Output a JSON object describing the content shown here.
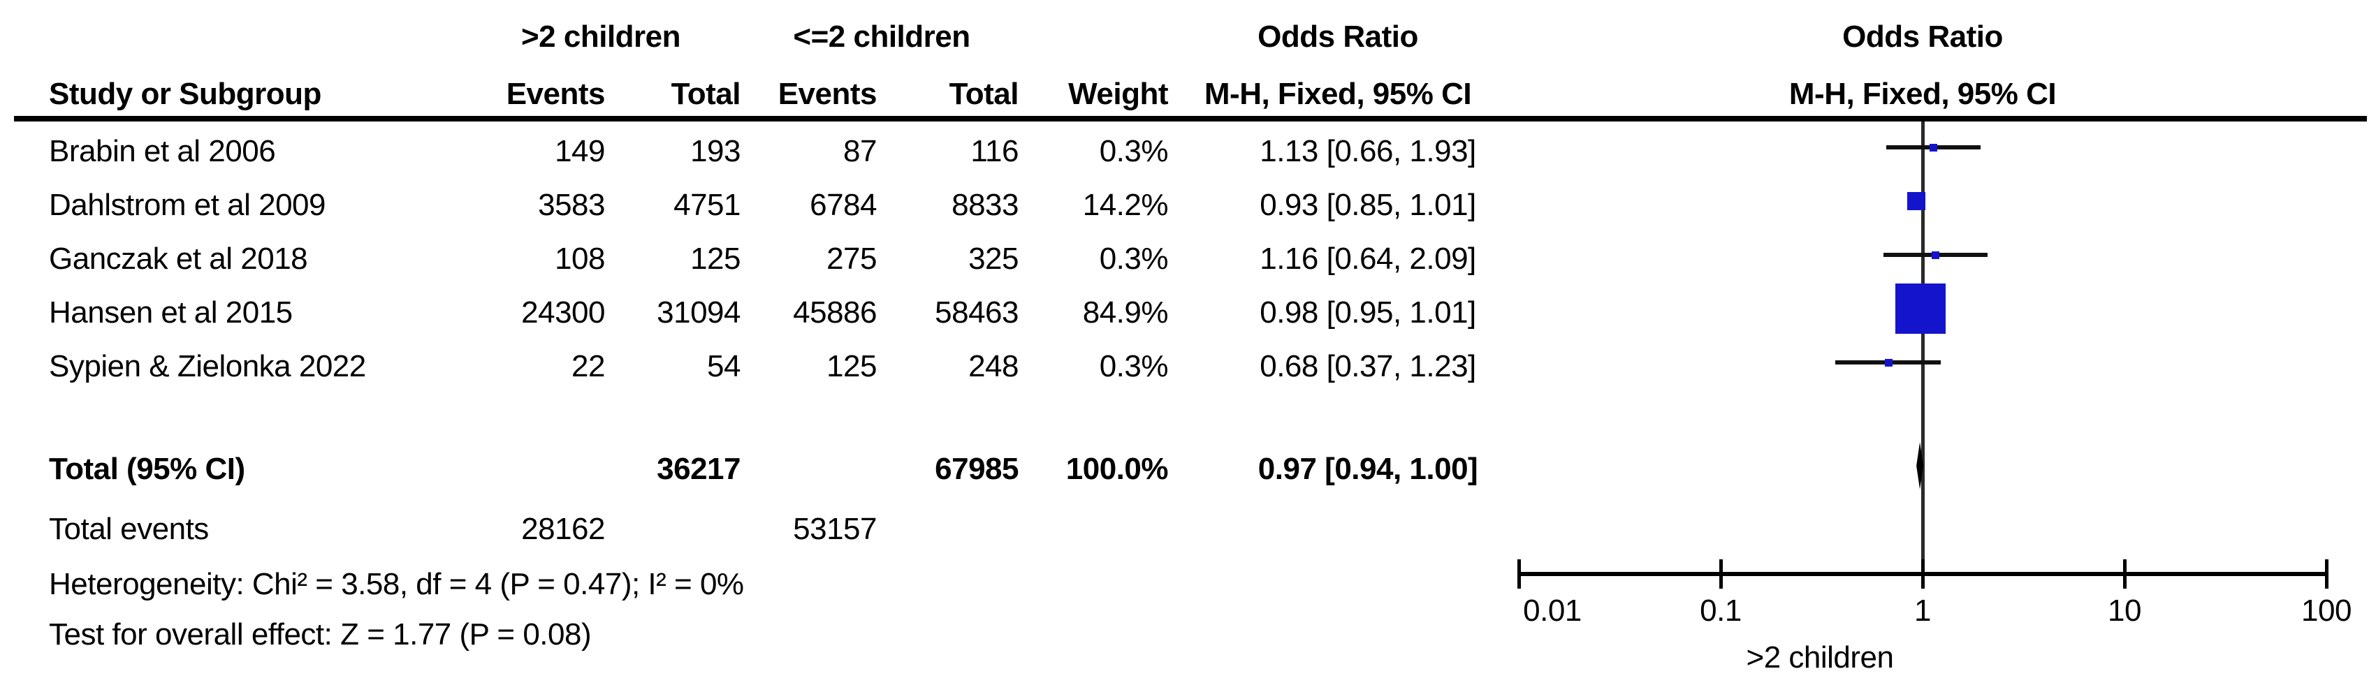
{
  "colors": {
    "marker_blue": "#1414CC",
    "line_black": "#000000",
    "background": "#ffffff"
  },
  "header": {
    "group1": ">2 children",
    "group2": "<=2 children",
    "study": "Study or Subgroup",
    "events": "Events",
    "total": "Total",
    "weight": "Weight",
    "or_title": "Odds Ratio",
    "or_subtitle": "M-H, Fixed, 95% CI",
    "plot_title": "Odds Ratio",
    "plot_subtitle": "M-H, Fixed, 95% CI"
  },
  "rows": [
    {
      "name": "Brabin et al 2006",
      "e1": "149",
      "t1": "193",
      "e2": "87",
      "t2": "116",
      "weight": "0.3%",
      "ci": "1.13 [0.66, 1.93]",
      "or": 1.13,
      "lo": 0.66,
      "hi": 1.93,
      "w": 0.3
    },
    {
      "name": "Dahlstrom et al 2009",
      "e1": "3583",
      "t1": "4751",
      "e2": "6784",
      "t2": "8833",
      "weight": "14.2%",
      "ci": "0.93 [0.85, 1.01]",
      "or": 0.93,
      "lo": 0.85,
      "hi": 1.01,
      "w": 14.2
    },
    {
      "name": "Ganczak et al 2018",
      "e1": "108",
      "t1": "125",
      "e2": "275",
      "t2": "325",
      "weight": "0.3%",
      "ci": "1.16 [0.64, 2.09]",
      "or": 1.16,
      "lo": 0.64,
      "hi": 2.09,
      "w": 0.3
    },
    {
      "name": "Hansen et al 2015",
      "e1": "24300",
      "t1": "31094",
      "e2": "45886",
      "t2": "58463",
      "weight": "84.9%",
      "ci": "0.98 [0.95, 1.01]",
      "or": 0.98,
      "lo": 0.95,
      "hi": 1.01,
      "w": 84.9
    },
    {
      "name": "Sypien & Zielonka 2022",
      "e1": "22",
      "t1": "54",
      "e2": "125",
      "t2": "248",
      "weight": "0.3%",
      "ci": "0.68 [0.37, 1.23]",
      "or": 0.68,
      "lo": 0.37,
      "hi": 1.23,
      "w": 0.3
    }
  ],
  "total_row": {
    "label": "Total (95% CI)",
    "t1": "36217",
    "t2": "67985",
    "weight": "100.0%",
    "ci": "0.97 [0.94, 1.00]",
    "or": 0.97,
    "lo": 0.94,
    "hi": 1.0
  },
  "total_events": {
    "label": "Total events",
    "e1": "28162",
    "e2": "53157"
  },
  "stats": {
    "heterogeneity": "Heterogeneity: Chi² = 3.58, df = 4 (P = 0.47); I² = 0%",
    "overall": "Test for overall effect: Z = 1.77 (P = 0.08)"
  },
  "axis": {
    "ticks": [
      "0.01",
      "0.1",
      "1",
      "10",
      "100"
    ],
    "values": [
      0.01,
      0.1,
      1,
      10,
      100
    ],
    "label": ">2 children"
  },
  "chart_data": {
    "type": "scatter",
    "subtype": "forest-plot-meta-analysis",
    "title": "Odds Ratio",
    "effect_measure": "M-H, Fixed, 95% CI",
    "x_scale": "log10",
    "x_ticks": [
      0.01,
      0.1,
      1,
      10,
      100
    ],
    "xlim": [
      0.01,
      100
    ],
    "x_axis_label": ">2 children",
    "reference_line": 1,
    "studies": [
      {
        "study": "Brabin et al 2006",
        "events_gt2children": 149,
        "total_gt2children": 193,
        "events_le2children": 87,
        "total_le2children": 116,
        "weight_pct": 0.3,
        "odds_ratio": 1.13,
        "ci_low": 0.66,
        "ci_high": 1.93
      },
      {
        "study": "Dahlstrom et al 2009",
        "events_gt2children": 3583,
        "total_gt2children": 4751,
        "events_le2children": 6784,
        "total_le2children": 8833,
        "weight_pct": 14.2,
        "odds_ratio": 0.93,
        "ci_low": 0.85,
        "ci_high": 1.01
      },
      {
        "study": "Ganczak et al 2018",
        "events_gt2children": 108,
        "total_gt2children": 125,
        "events_le2children": 275,
        "total_le2children": 325,
        "weight_pct": 0.3,
        "odds_ratio": 1.16,
        "ci_low": 0.64,
        "ci_high": 2.09
      },
      {
        "study": "Hansen et al 2015",
        "events_gt2children": 24300,
        "total_gt2children": 31094,
        "events_le2children": 45886,
        "total_le2children": 58463,
        "weight_pct": 84.9,
        "odds_ratio": 0.98,
        "ci_low": 0.95,
        "ci_high": 1.01
      },
      {
        "study": "Sypien & Zielonka 2022",
        "events_gt2children": 22,
        "total_gt2children": 54,
        "events_le2children": 125,
        "total_le2children": 248,
        "weight_pct": 0.3,
        "odds_ratio": 0.68,
        "ci_low": 0.37,
        "ci_high": 1.23
      }
    ],
    "total": {
      "label": "Total (95% CI)",
      "total_gt2children": 36217,
      "total_le2children": 67985,
      "weight_pct": 100.0,
      "odds_ratio": 0.97,
      "ci_low": 0.94,
      "ci_high": 1.0
    },
    "total_events": {
      "gt2children": 28162,
      "le2children": 53157
    },
    "heterogeneity": "Chi² = 3.58, df = 4 (P = 0.47); I² = 0%",
    "test_overall_effect": "Z = 1.77 (P = 0.08)"
  }
}
